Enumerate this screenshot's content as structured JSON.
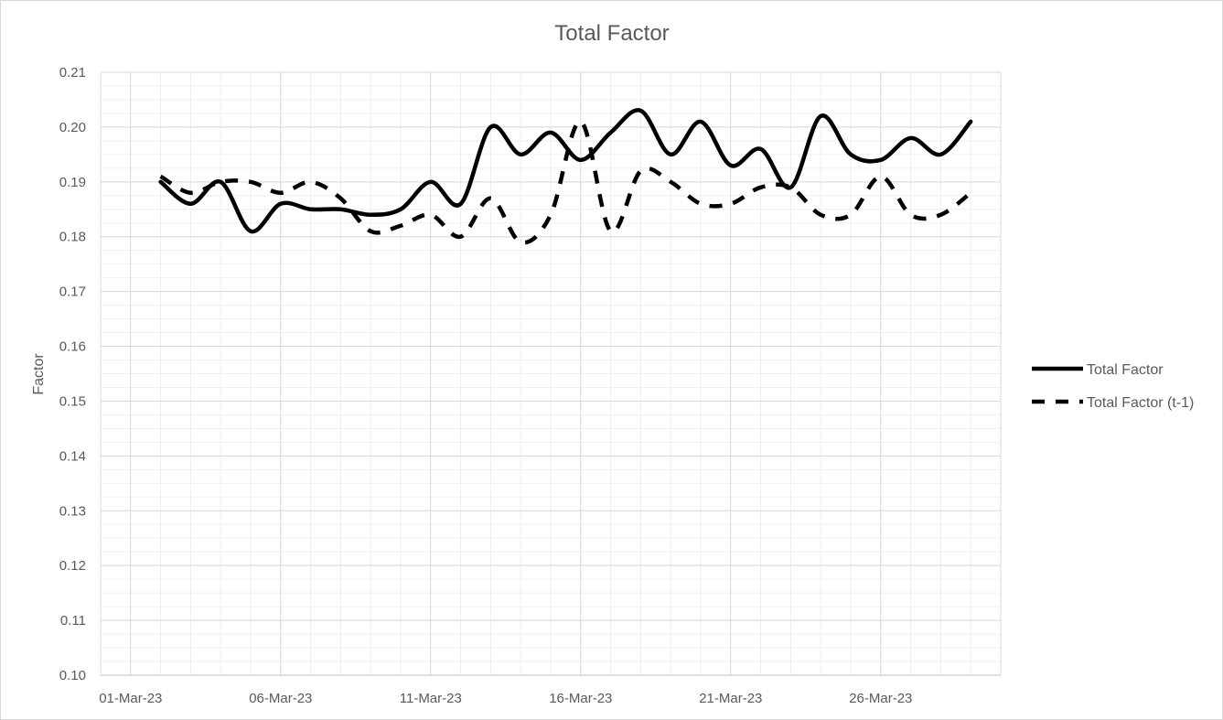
{
  "chart_data": {
    "type": "line",
    "title": "Total Factor",
    "xlabel": "",
    "ylabel": "Factor",
    "ylim": [
      0.1,
      0.21
    ],
    "y_ticks": [
      "0.10",
      "0.11",
      "0.12",
      "0.13",
      "0.14",
      "0.15",
      "0.16",
      "0.17",
      "0.18",
      "0.19",
      "0.20",
      "0.21"
    ],
    "x_tick_labels": [
      "01-Mar-23",
      "06-Mar-23",
      "11-Mar-23",
      "16-Mar-23",
      "21-Mar-23",
      "26-Mar-23"
    ],
    "x_range": [
      "2023-02-28",
      "2023-03-30"
    ],
    "grid": true,
    "legend_position": "right",
    "x": [
      "02-Mar-23",
      "03-Mar-23",
      "04-Mar-23",
      "05-Mar-23",
      "06-Mar-23",
      "07-Mar-23",
      "08-Mar-23",
      "09-Mar-23",
      "10-Mar-23",
      "11-Mar-23",
      "12-Mar-23",
      "13-Mar-23",
      "14-Mar-23",
      "15-Mar-23",
      "16-Mar-23",
      "17-Mar-23",
      "18-Mar-23",
      "19-Mar-23",
      "20-Mar-23",
      "21-Mar-23",
      "22-Mar-23",
      "23-Mar-23",
      "24-Mar-23",
      "25-Mar-23",
      "26-Mar-23",
      "27-Mar-23",
      "28-Mar-23",
      "29-Mar-23"
    ],
    "series": [
      {
        "name": "Total Factor",
        "style": "solid",
        "color": "#000000",
        "values": [
          0.19,
          0.186,
          0.19,
          0.181,
          0.186,
          0.185,
          0.185,
          0.184,
          0.185,
          0.19,
          0.186,
          0.2,
          0.195,
          0.199,
          0.194,
          0.199,
          0.203,
          0.195,
          0.201,
          0.193,
          0.196,
          0.189,
          0.202,
          0.195,
          0.194,
          0.198,
          0.195,
          0.201
        ]
      },
      {
        "name": "Total Factor (t-1)",
        "style": "dashed",
        "color": "#000000",
        "values": [
          0.191,
          0.188,
          0.19,
          0.19,
          0.188,
          0.19,
          0.187,
          0.181,
          0.182,
          0.184,
          0.18,
          0.187,
          0.179,
          0.184,
          0.201,
          0.181,
          0.192,
          0.19,
          0.186,
          0.186,
          0.189,
          0.189,
          0.184,
          0.184,
          0.191,
          0.184,
          0.184,
          0.188
        ]
      }
    ]
  }
}
